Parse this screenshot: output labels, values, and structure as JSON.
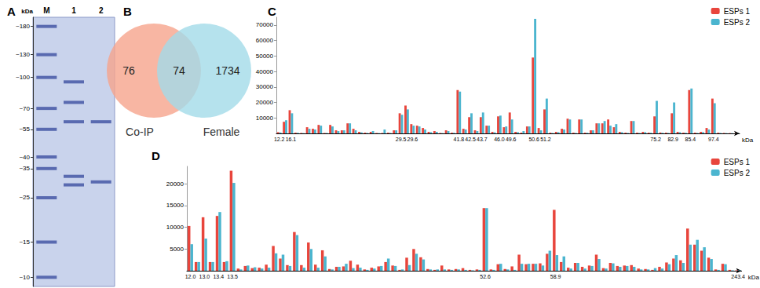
{
  "chart_data": [
    {
      "type": "gel",
      "title": "A",
      "categories": [
        "M",
        "1",
        "2"
      ],
      "ylabel": "kDa",
      "log": "y",
      "ylim": [
        9,
        200
      ],
      "yticks": [
        {
          "value": 180,
          "label": "~180"
        },
        {
          "value": 130,
          "label": "~130"
        },
        {
          "value": 100,
          "label": "~100"
        },
        {
          "value": 70,
          "label": "~70"
        },
        {
          "value": 55,
          "label": "~55"
        },
        {
          "value": 40,
          "label": "~40"
        },
        {
          "value": 35,
          "label": "~35"
        },
        {
          "value": 25,
          "label": "~25"
        },
        {
          "value": 15,
          "label": "~15"
        },
        {
          "value": 10,
          "label": "~10"
        }
      ],
      "bands": [
        [
          180,
          130,
          100,
          70,
          55,
          40,
          35,
          25,
          15,
          10
        ],
        [
          95,
          75,
          60,
          32,
          29
        ],
        [
          60,
          30
        ]
      ]
    },
    {
      "type": "venn",
      "title": "B",
      "sets": [
        {
          "name": "Co-IP",
          "color": "#f6a48c",
          "count": 76
        },
        {
          "name": "Female",
          "color": "#a3dbe8",
          "count": 1734
        }
      ],
      "overlap": 74
    },
    {
      "type": "bar",
      "title": "C",
      "xlabel": "kDa",
      "legend": "upper right",
      "grid": false,
      "ylim": [
        0,
        75000
      ],
      "yticks": [
        10000,
        20000,
        30000,
        40000,
        50000,
        60000,
        70000
      ],
      "categories": [
        "12.2",
        null,
        "16.1",
        null,
        null,
        null,
        null,
        null,
        null,
        null,
        null,
        null,
        null,
        null,
        null,
        null,
        null,
        null,
        null,
        null,
        null,
        "29.5",
        null,
        "29.6",
        null,
        null,
        null,
        null,
        null,
        null,
        null,
        "41.8",
        null,
        "42.5",
        null,
        "43.7",
        null,
        null,
        "46.0",
        null,
        "49.6",
        null,
        null,
        null,
        "50.6",
        null,
        "51.2",
        null,
        null,
        null,
        null,
        null,
        null,
        null,
        null,
        null,
        null,
        null,
        null,
        null,
        null,
        null,
        null,
        null,
        null,
        "75.2",
        null,
        null,
        "82.9",
        null,
        null,
        "85.4",
        null,
        null,
        null,
        "97.4",
        null,
        null,
        null,
        null
      ],
      "series": [
        {
          "name": "ESPs 1",
          "color": "#e8453c",
          "values": [
            800,
            7500,
            15000,
            500,
            300,
            4000,
            3000,
            5500,
            300,
            5500,
            2000,
            2000,
            6500,
            3000,
            1000,
            500,
            1000,
            300,
            300,
            500,
            2000,
            13000,
            18000,
            6000,
            5000,
            3500,
            1000,
            1500,
            300,
            2000,
            500,
            28000,
            3000,
            10500,
            2000,
            10500,
            5000,
            1000,
            11000,
            4000,
            13500,
            1000,
            500,
            4500,
            49000,
            3500,
            15500,
            500,
            1000,
            3000,
            9500,
            500,
            9000,
            500,
            2000,
            6500,
            6500,
            9000,
            4000,
            1000,
            500,
            8000,
            500,
            1000,
            500,
            11000,
            600,
            500,
            13000,
            1000,
            500,
            28000,
            500,
            1000,
            3500,
            22500,
            500,
            300,
            200,
            100
          ]
        },
        {
          "name": "ESPs 2",
          "color": "#4bb5cf",
          "values": [
            600,
            8500,
            13000,
            400,
            200,
            3000,
            2500,
            5000,
            300,
            4500,
            1500,
            2000,
            6500,
            2000,
            700,
            300,
            1500,
            200,
            2500,
            300,
            2000,
            12000,
            15500,
            5000,
            4500,
            2500,
            800,
            1000,
            200,
            1500,
            400,
            27000,
            2500,
            13000,
            1500,
            13500,
            5000,
            700,
            11500,
            4500,
            9000,
            800,
            1500,
            4500,
            74000,
            2000,
            22500,
            300,
            800,
            2500,
            9000,
            300,
            9000,
            400,
            2000,
            6500,
            8000,
            5000,
            6000,
            800,
            300,
            8000,
            300,
            800,
            400,
            21000,
            400,
            300,
            20000,
            800,
            400,
            29000,
            300,
            800,
            2500,
            19500,
            300,
            200,
            150,
            100
          ]
        }
      ]
    },
    {
      "type": "bar",
      "title": "D",
      "xlabel": "kDa",
      "legend": "upper right",
      "grid": false,
      "ylim": [
        0,
        24000
      ],
      "yticks": [
        5000,
        10000,
        15000,
        20000
      ],
      "categories": [
        "12.0",
        null,
        "13.0",
        null,
        "13.4",
        null,
        "13.5",
        null,
        null,
        null,
        null,
        null,
        null,
        null,
        null,
        null,
        null,
        null,
        null,
        null,
        null,
        null,
        null,
        null,
        null,
        null,
        null,
        null,
        null,
        null,
        null,
        null,
        null,
        null,
        null,
        null,
        null,
        null,
        null,
        null,
        null,
        null,
        "52.6",
        null,
        null,
        null,
        null,
        null,
        null,
        null,
        null,
        null,
        "58.9",
        null,
        null,
        null,
        null,
        null,
        null,
        null,
        null,
        null,
        null,
        null,
        null,
        null,
        null,
        null,
        null,
        null,
        null,
        null,
        null,
        null,
        null,
        null,
        null,
        null,
        "243.4"
      ],
      "series": [
        {
          "name": "ESPs 1",
          "color": "#e8453c",
          "values": [
            10300,
            2000,
            12300,
            2000,
            12600,
            2000,
            23000,
            500,
            1100,
            600,
            700,
            1400,
            5700,
            2800,
            1300,
            8900,
            1300,
            6500,
            1400,
            4700,
            400,
            900,
            1000,
            2300,
            1400,
            300,
            700,
            1000,
            2000,
            1200,
            200,
            3000,
            5000,
            3100,
            400,
            200,
            1200,
            300,
            400,
            600,
            200,
            300,
            14400,
            300,
            1500,
            400,
            1000,
            3700,
            1500,
            1600,
            1700,
            3900,
            14000,
            2000,
            700,
            1800,
            900,
            1200,
            3700,
            600,
            1800,
            1100,
            1200,
            1300,
            500,
            400,
            200,
            900,
            1900,
            2800,
            2400,
            9700,
            6000,
            4600,
            3000,
            300,
            1600,
            200,
            100
          ]
        },
        {
          "name": "ESPs 2",
          "color": "#4bb5cf",
          "values": [
            6100,
            2000,
            7400,
            2000,
            13500,
            2200,
            20200,
            300,
            1200,
            800,
            500,
            700,
            4000,
            3700,
            1100,
            8200,
            700,
            5000,
            700,
            3300,
            300,
            900,
            1600,
            600,
            700,
            200,
            500,
            1100,
            2800,
            1100,
            300,
            1300,
            3900,
            2600,
            300,
            300,
            300,
            200,
            300,
            200,
            100,
            200,
            14400,
            200,
            1600,
            300,
            200,
            1600,
            1600,
            1600,
            1200,
            4600,
            3600,
            3300,
            500,
            1800,
            500,
            1100,
            2700,
            500,
            1700,
            900,
            1100,
            900,
            300,
            300,
            600,
            500,
            1500,
            3600,
            1800,
            6000,
            7100,
            5400,
            2700,
            200,
            1500,
            100,
            100
          ]
        }
      ]
    }
  ]
}
